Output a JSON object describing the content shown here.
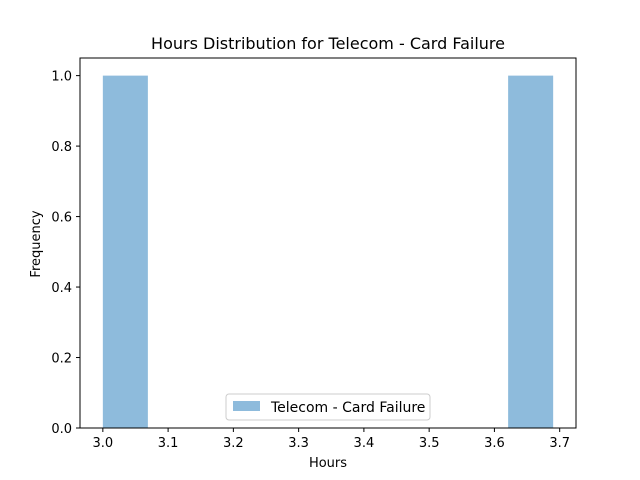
{
  "chart_data": {
    "type": "bar",
    "title": "Hours Distribution for Telecom - Card Failure",
    "xlabel": "Hours",
    "ylabel": "Frequency",
    "xlim": [
      2.965,
      3.725
    ],
    "ylim": [
      0.0,
      1.05
    ],
    "x_ticks": [
      "3.0",
      "3.1",
      "3.2",
      "3.3",
      "3.4",
      "3.5",
      "3.6",
      "3.7"
    ],
    "y_ticks": [
      "0.0",
      "0.2",
      "0.4",
      "0.6",
      "0.8",
      "1.0"
    ],
    "grid": false,
    "legend_position": "lower center",
    "series": [
      {
        "name": "Telecom - Card Failure",
        "color": "#8ebbdc",
        "bins": [
          {
            "x0": 3.0,
            "x1": 3.069,
            "count": 1
          },
          {
            "x0": 3.069,
            "x1": 3.138,
            "count": 0
          },
          {
            "x0": 3.138,
            "x1": 3.207,
            "count": 0
          },
          {
            "x0": 3.207,
            "x1": 3.276,
            "count": 0
          },
          {
            "x0": 3.276,
            "x1": 3.345,
            "count": 0
          },
          {
            "x0": 3.345,
            "x1": 3.414,
            "count": 0
          },
          {
            "x0": 3.414,
            "x1": 3.483,
            "count": 0
          },
          {
            "x0": 3.483,
            "x1": 3.552,
            "count": 0
          },
          {
            "x0": 3.552,
            "x1": 3.621,
            "count": 0
          },
          {
            "x0": 3.621,
            "x1": 3.69,
            "count": 1
          }
        ]
      }
    ]
  }
}
